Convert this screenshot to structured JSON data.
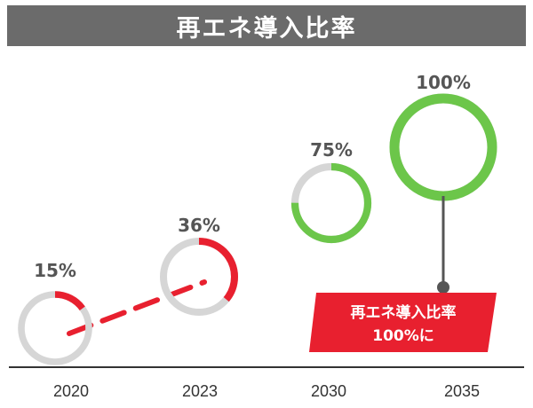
{
  "title": "再エネ導入比率",
  "colors": {
    "title_bg": "#6b6b6b",
    "track": "#d6d6d6",
    "red": "#e8202f",
    "green": "#6cc64a",
    "label": "#555555",
    "connector": "#555555"
  },
  "callout": {
    "line1": "再エネ導入比率",
    "line2": "100%に"
  },
  "chart_data": {
    "type": "progress-ring",
    "categories": [
      "2020",
      "2023",
      "2030",
      "2035"
    ],
    "values": [
      15,
      36,
      75,
      100
    ],
    "labels": [
      "15%",
      "36%",
      "75%",
      "100%"
    ],
    "ring_colors": [
      "#e8202f",
      "#e8202f",
      "#6cc64a",
      "#6cc64a"
    ],
    "ylim": [
      0,
      100
    ],
    "title": "再エネ導入比率",
    "grid": false,
    "legend": "none"
  }
}
